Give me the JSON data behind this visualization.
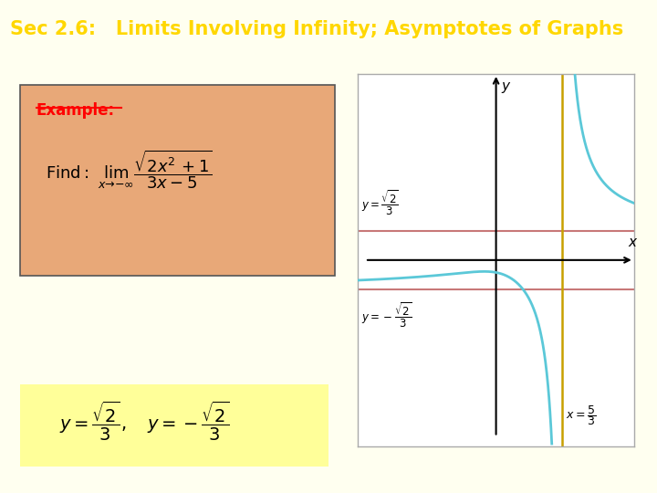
{
  "title": "Sec 2.6:   Limits Involving Infinity; Asymptotes of Graphs",
  "title_bg": "#8B0000",
  "title_fg": "#FFD700",
  "bg_color": "#FFFFF0",
  "example_box_color": "#E8A878",
  "answer_box_color": "#FFFF99",
  "sqrt2_over_3": 0.4714,
  "vertical_asymptote": 1.6667,
  "graph_xlim": [
    -3.5,
    3.5
  ],
  "graph_ylim": [
    -3.0,
    3.0
  ],
  "curve_color": "#5BC8D8",
  "asymptote_h_color": "#C87878",
  "asymptote_v_color": "#C8A000"
}
